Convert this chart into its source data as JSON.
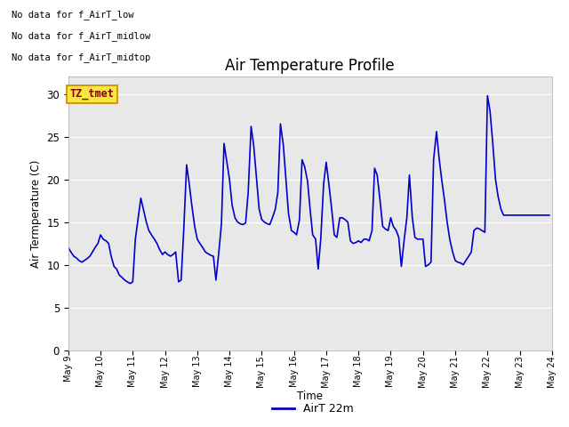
{
  "title": "Air Temperature Profile",
  "xlabel": "Time",
  "ylabel": "Air Termperature (C)",
  "ylim": [
    0,
    32
  ],
  "yticks": [
    0,
    5,
    10,
    15,
    20,
    25,
    30
  ],
  "background_color": "#e8e8e8",
  "line_color": "#0000cc",
  "legend_label": "AirT 22m",
  "no_data_texts": [
    "No data for f_AirT_low",
    "No data for f_AirT_midlow",
    "No data for f_AirT_midtop"
  ],
  "tz_label": "TZ_tmet",
  "x_tick_labels": [
    "May 9",
    "May 10",
    "May 11",
    "May 12",
    "May 13",
    "May 14",
    "May 15",
    "May 16",
    "May 17",
    "May 18",
    "May 19",
    "May 20",
    "May 21",
    "May 22",
    "May 23",
    "May 24"
  ],
  "time_values": [
    9.0,
    9.08,
    9.17,
    9.25,
    9.33,
    9.42,
    9.5,
    9.58,
    9.67,
    9.75,
    9.83,
    9.92,
    10.0,
    10.08,
    10.17,
    10.25,
    10.33,
    10.42,
    10.5,
    10.58,
    10.67,
    10.75,
    10.83,
    10.92,
    11.0,
    11.08,
    11.17,
    11.25,
    11.33,
    11.42,
    11.5,
    11.58,
    11.67,
    11.75,
    11.83,
    11.92,
    12.0,
    12.08,
    12.17,
    12.25,
    12.33,
    12.42,
    12.5,
    12.58,
    12.67,
    12.75,
    12.83,
    12.92,
    13.0,
    13.08,
    13.17,
    13.25,
    13.33,
    13.42,
    13.5,
    13.58,
    13.67,
    13.75,
    13.83,
    13.92,
    14.0,
    14.08,
    14.17,
    14.25,
    14.33,
    14.42,
    14.5,
    14.58,
    14.67,
    14.75,
    14.83,
    14.92,
    15.0,
    15.08,
    15.17,
    15.25,
    15.33,
    15.42,
    15.5,
    15.58,
    15.67,
    15.75,
    15.83,
    15.92,
    16.0,
    16.08,
    16.17,
    16.25,
    16.33,
    16.42,
    16.5,
    16.58,
    16.67,
    16.75,
    16.83,
    16.92,
    17.0,
    17.08,
    17.17,
    17.25,
    17.33,
    17.42,
    17.5,
    17.58,
    17.67,
    17.75,
    17.83,
    17.92,
    18.0,
    18.08,
    18.17,
    18.25,
    18.33,
    18.42,
    18.5,
    18.58,
    18.67,
    18.75,
    18.83,
    18.92,
    19.0,
    19.08,
    19.17,
    19.25,
    19.33,
    19.42,
    19.5,
    19.58,
    19.67,
    19.75,
    19.83,
    19.92,
    20.0,
    20.08,
    20.17,
    20.25,
    20.33,
    20.42,
    20.5,
    20.58,
    20.67,
    20.75,
    20.83,
    20.92,
    21.0,
    21.08,
    21.17,
    21.25,
    21.33,
    21.42,
    21.5,
    21.58,
    21.67,
    21.75,
    21.83,
    21.92,
    22.0,
    22.08,
    22.17,
    22.25,
    22.33,
    22.42,
    22.5,
    22.58,
    22.67,
    22.75,
    22.83,
    22.92,
    23.0,
    23.08,
    23.17,
    23.25,
    23.33,
    23.42,
    23.5,
    23.58,
    23.67,
    23.75,
    23.83,
    23.92
  ],
  "temp_values": [
    12.0,
    11.5,
    11.0,
    10.8,
    10.5,
    10.3,
    10.5,
    10.7,
    11.0,
    11.5,
    12.0,
    12.5,
    13.5,
    13.0,
    12.8,
    12.5,
    11.0,
    9.8,
    9.5,
    8.8,
    8.5,
    8.2,
    8.0,
    7.8,
    8.0,
    13.0,
    15.5,
    17.8,
    16.5,
    15.0,
    14.0,
    13.5,
    13.0,
    12.5,
    11.8,
    11.2,
    11.5,
    11.2,
    11.0,
    11.2,
    11.5,
    8.0,
    8.2,
    14.0,
    21.7,
    19.5,
    17.0,
    14.5,
    13.0,
    12.5,
    12.0,
    11.5,
    11.3,
    11.1,
    11.0,
    8.2,
    11.5,
    14.8,
    24.2,
    22.0,
    20.0,
    17.0,
    15.5,
    15.0,
    14.8,
    14.7,
    14.9,
    18.5,
    26.2,
    24.0,
    20.5,
    16.5,
    15.3,
    15.0,
    14.8,
    14.7,
    15.5,
    16.5,
    18.5,
    26.5,
    24.0,
    20.0,
    16.0,
    14.0,
    13.8,
    13.5,
    15.3,
    22.3,
    21.5,
    19.8,
    16.5,
    13.5,
    13.0,
    9.5,
    13.0,
    19.5,
    22.0,
    19.5,
    16.5,
    13.5,
    13.2,
    15.5,
    15.5,
    15.3,
    15.0,
    12.8,
    12.5,
    12.6,
    12.8,
    12.6,
    13.0,
    13.0,
    12.8,
    14.0,
    21.3,
    20.5,
    17.5,
    14.5,
    14.2,
    14.0,
    15.5,
    14.5,
    14.0,
    13.2,
    9.8,
    13.0,
    15.5,
    20.5,
    15.5,
    13.2,
    13.0,
    13.0,
    13.0,
    9.8,
    10.0,
    10.3,
    22.3,
    25.6,
    22.5,
    20.0,
    17.5,
    15.0,
    13.0,
    11.5,
    10.5,
    10.3,
    10.2,
    10.0,
    10.5,
    11.0,
    11.5,
    14.0,
    14.3,
    14.2,
    14.0,
    13.8,
    29.8,
    28.0,
    24.0,
    20.0,
    18.0,
    16.5,
    15.8,
    15.8,
    15.8,
    15.8,
    15.8,
    15.8,
    15.8,
    15.8,
    15.8,
    15.8,
    15.8,
    15.8,
    15.8,
    15.8,
    15.8,
    15.8,
    15.8,
    15.8
  ]
}
